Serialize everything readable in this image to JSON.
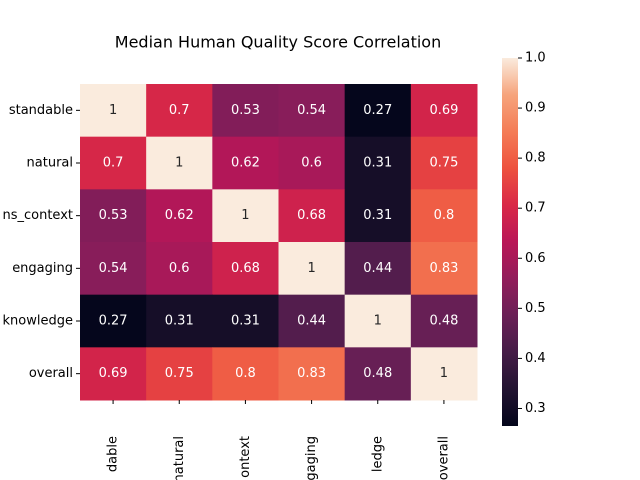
{
  "chart_data": {
    "type": "heatmap",
    "title": "Median Human Quality Score Correlation",
    "x_labels": [
      "dable",
      "natural",
      "ontext",
      "gaging",
      "ledge",
      "overall"
    ],
    "y_labels": [
      "standable",
      "natural",
      "ns_context",
      "engaging",
      "knowledge",
      "overall"
    ],
    "values": [
      [
        1,
        0.7,
        0.53,
        0.54,
        0.27,
        0.69
      ],
      [
        0.7,
        1,
        0.62,
        0.6,
        0.31,
        0.75
      ],
      [
        0.53,
        0.62,
        1,
        0.68,
        0.31,
        0.8
      ],
      [
        0.54,
        0.6,
        0.68,
        1,
        0.44,
        0.83
      ],
      [
        0.27,
        0.31,
        0.31,
        0.44,
        1,
        0.48
      ],
      [
        0.69,
        0.75,
        0.8,
        0.83,
        0.48,
        1
      ]
    ],
    "colormap": "rocket",
    "clim": [
      0.265,
      1
    ],
    "cticks": [
      0.3,
      0.4,
      0.5,
      0.6,
      0.7,
      0.8,
      0.9,
      1.0
    ]
  }
}
